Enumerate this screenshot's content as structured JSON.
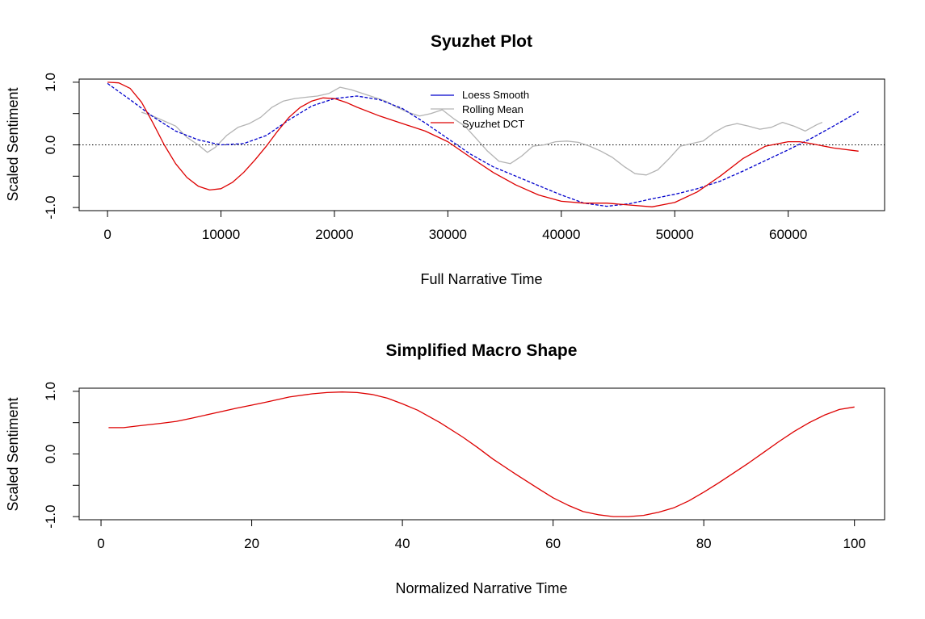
{
  "chart_data": [
    {
      "type": "line",
      "title": "Syuzhet Plot",
      "xlabel": "Full Narrative Time",
      "ylabel": "Scaled Sentiment",
      "xlim": [
        -2500,
        68500
      ],
      "ylim": [
        -1.05,
        1.05
      ],
      "x_ticks": [
        0,
        10000,
        20000,
        30000,
        40000,
        50000,
        60000
      ],
      "x_tick_labels": [
        "0",
        "10000",
        "20000",
        "30000",
        "40000",
        "50000",
        "60000"
      ],
      "y_ticks": [
        -1.0,
        -0.5,
        0.0,
        0.5,
        1.0
      ],
      "y_tick_labels": [
        "-1.0",
        "",
        "0.0",
        "",
        "1.0"
      ],
      "reference_line": {
        "y": 0,
        "style": "dotted"
      },
      "legend": {
        "placement": "top-center",
        "entries": [
          "Loess Smooth",
          "Rolling Mean",
          "Syuzhet DCT"
        ]
      },
      "series": [
        {
          "name": "Loess Smooth",
          "color": "#0000cc",
          "style": "dashed",
          "x": [
            0,
            2000,
            4000,
            6000,
            8000,
            10000,
            12000,
            14000,
            16000,
            18000,
            20000,
            22000,
            24000,
            26000,
            28000,
            30000,
            32000,
            34000,
            36000,
            38000,
            40000,
            42000,
            44000,
            46000,
            48000,
            50000,
            52000,
            54000,
            56000,
            58000,
            60000,
            62000,
            64000,
            66200
          ],
          "y": [
            0.98,
            0.72,
            0.45,
            0.22,
            0.08,
            0.0,
            0.02,
            0.15,
            0.4,
            0.62,
            0.74,
            0.78,
            0.72,
            0.58,
            0.35,
            0.1,
            -0.15,
            -0.35,
            -0.5,
            -0.65,
            -0.8,
            -0.93,
            -0.98,
            -0.94,
            -0.86,
            -0.79,
            -0.7,
            -0.58,
            -0.42,
            -0.25,
            -0.08,
            0.1,
            0.3,
            0.53
          ]
        },
        {
          "name": "Rolling Mean",
          "color": "#b3b3b3",
          "style": "solid",
          "x": [
            3000,
            4000,
            5000,
            6000,
            7000,
            8000,
            8800,
            9500,
            10500,
            11500,
            12500,
            13500,
            14500,
            15500,
            16500,
            17500,
            18500,
            19500,
            20500,
            21500,
            22500,
            23500,
            24500,
            25500,
            26500,
            27500,
            28500,
            29500,
            30500,
            31500,
            32500,
            33500,
            34500,
            35500,
            36500,
            37500,
            38500,
            39500,
            40500,
            41500,
            42500,
            43500,
            44500,
            45500,
            46500,
            47500,
            48500,
            49500,
            50500,
            51500,
            52500,
            53500,
            54500,
            55500,
            56500,
            57500,
            58500,
            59500,
            60500,
            61500,
            62500,
            63000
          ],
          "y": [
            0.52,
            0.46,
            0.38,
            0.3,
            0.12,
            0.0,
            -0.12,
            -0.04,
            0.15,
            0.28,
            0.34,
            0.44,
            0.6,
            0.7,
            0.74,
            0.76,
            0.78,
            0.82,
            0.92,
            0.88,
            0.82,
            0.76,
            0.7,
            0.6,
            0.52,
            0.46,
            0.5,
            0.56,
            0.42,
            0.3,
            0.1,
            -0.1,
            -0.26,
            -0.3,
            -0.18,
            -0.02,
            0.0,
            0.05,
            0.06,
            0.04,
            -0.02,
            -0.1,
            -0.2,
            -0.34,
            -0.46,
            -0.48,
            -0.4,
            -0.22,
            -0.02,
            0.02,
            0.06,
            0.2,
            0.3,
            0.34,
            0.3,
            0.25,
            0.28,
            0.36,
            0.3,
            0.22,
            0.32,
            0.36
          ]
        },
        {
          "name": "Syuzhet DCT",
          "color": "#dd0000",
          "style": "solid",
          "x": [
            0,
            1000,
            2000,
            3000,
            4000,
            5000,
            6000,
            7000,
            8000,
            9000,
            10000,
            11000,
            12000,
            13000,
            14000,
            15000,
            16000,
            17000,
            18000,
            19000,
            20000,
            21000,
            22000,
            24000,
            26000,
            28000,
            30000,
            32000,
            34000,
            36000,
            38000,
            40000,
            42000,
            44000,
            46000,
            48000,
            50000,
            52000,
            54000,
            56000,
            58000,
            60000,
            61000,
            62000,
            64000,
            66200
          ],
          "y": [
            1.0,
            0.99,
            0.9,
            0.68,
            0.35,
            0.0,
            -0.3,
            -0.52,
            -0.66,
            -0.72,
            -0.7,
            -0.6,
            -0.44,
            -0.24,
            -0.02,
            0.22,
            0.44,
            0.6,
            0.7,
            0.75,
            0.74,
            0.68,
            0.6,
            0.46,
            0.34,
            0.22,
            0.05,
            -0.2,
            -0.44,
            -0.64,
            -0.8,
            -0.9,
            -0.93,
            -0.93,
            -0.96,
            -0.99,
            -0.92,
            -0.75,
            -0.5,
            -0.22,
            -0.02,
            0.05,
            0.05,
            0.02,
            -0.05,
            -0.1
          ]
        }
      ]
    },
    {
      "type": "line",
      "title": "Simplified Macro Shape",
      "xlabel": "Normalized Narrative Time",
      "ylabel": "Scaled Sentiment",
      "xlim": [
        -2.9,
        104
      ],
      "ylim": [
        -1.05,
        1.05
      ],
      "x_ticks": [
        0,
        20,
        40,
        60,
        80,
        100
      ],
      "x_tick_labels": [
        "0",
        "20",
        "40",
        "60",
        "80",
        "100"
      ],
      "y_ticks": [
        -1.0,
        -0.5,
        0.0,
        0.5,
        1.0
      ],
      "y_tick_labels": [
        "-1.0",
        "",
        "0.0",
        "",
        "1.0"
      ],
      "series": [
        {
          "color": "#dd0000",
          "style": "solid",
          "x": [
            1,
            3,
            5,
            8,
            10,
            12,
            15,
            18,
            20,
            22,
            25,
            28,
            30,
            32,
            34,
            36,
            38,
            40,
            42,
            45,
            48,
            50,
            52,
            55,
            58,
            60,
            62,
            64,
            66,
            68,
            70,
            72,
            74,
            76,
            78,
            80,
            82,
            84,
            86,
            88,
            90,
            92,
            94,
            96,
            98,
            100
          ],
          "y": [
            0.42,
            0.42,
            0.45,
            0.49,
            0.52,
            0.57,
            0.65,
            0.73,
            0.78,
            0.83,
            0.91,
            0.96,
            0.98,
            0.99,
            0.98,
            0.95,
            0.89,
            0.8,
            0.7,
            0.5,
            0.27,
            0.1,
            -0.08,
            -0.32,
            -0.55,
            -0.7,
            -0.82,
            -0.92,
            -0.97,
            -1.0,
            -1.0,
            -0.98,
            -0.93,
            -0.86,
            -0.75,
            -0.61,
            -0.46,
            -0.3,
            -0.14,
            0.03,
            0.2,
            0.36,
            0.5,
            0.62,
            0.71,
            0.75
          ]
        }
      ]
    }
  ]
}
